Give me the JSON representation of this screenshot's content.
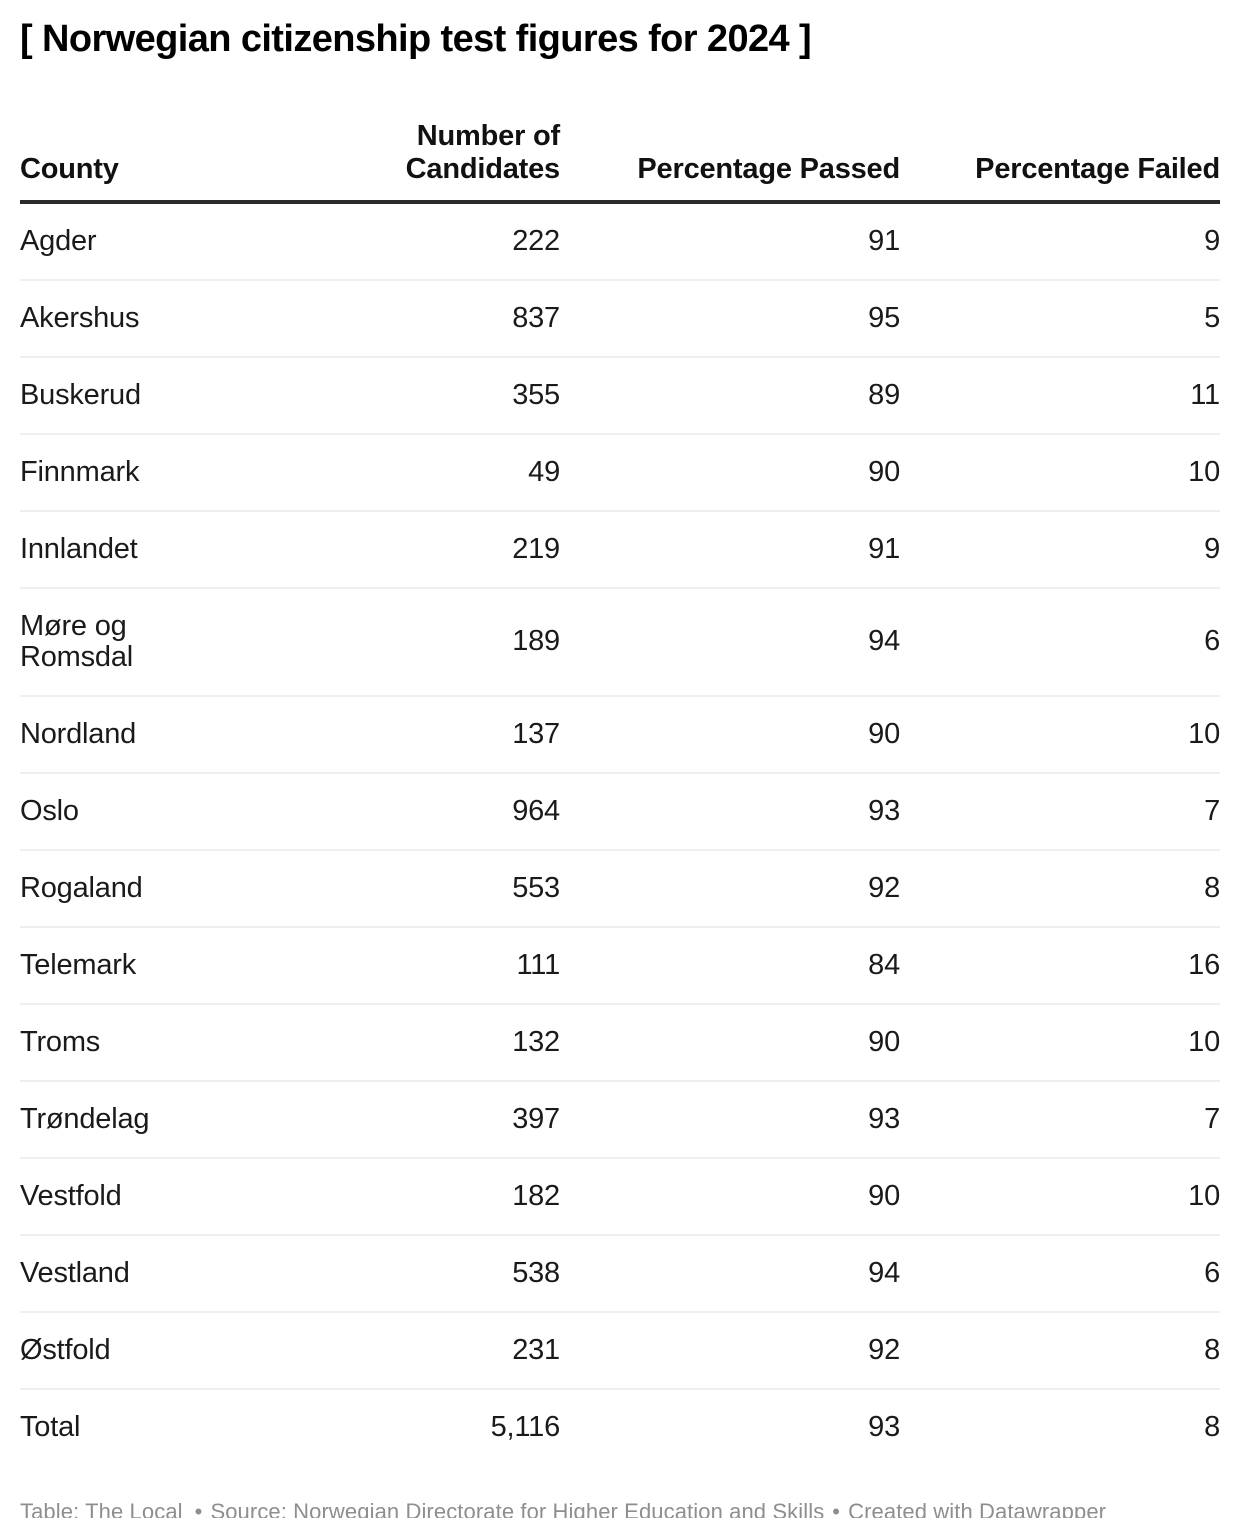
{
  "chart_data": {
    "type": "table",
    "title": "[ Norwegian citizenship test figures for 2024 ]",
    "columns": [
      "County",
      "Number of Candidates",
      "Percentage Passed",
      "Percentage Failed"
    ],
    "rows": [
      [
        "Agder",
        222,
        91,
        9
      ],
      [
        "Akershus",
        837,
        95,
        5
      ],
      [
        "Buskerud",
        355,
        89,
        11
      ],
      [
        "Finnmark",
        49,
        90,
        10
      ],
      [
        "Innlandet",
        219,
        91,
        9
      ],
      [
        "Møre og Romsdal",
        189,
        94,
        6
      ],
      [
        "Nordland",
        137,
        90,
        10
      ],
      [
        "Oslo",
        964,
        93,
        7
      ],
      [
        "Rogaland",
        553,
        92,
        8
      ],
      [
        "Telemark",
        111,
        84,
        16
      ],
      [
        "Troms",
        132,
        90,
        10
      ],
      [
        "Trøndelag",
        397,
        93,
        7
      ],
      [
        "Vestfold",
        182,
        90,
        10
      ],
      [
        "Vestland",
        538,
        94,
        6
      ],
      [
        "Østfold",
        231,
        92,
        8
      ],
      [
        "Total",
        5116,
        93,
        8
      ]
    ],
    "layout_hints": {
      "numeric_columns_right_aligned": true,
      "header_rule": "thick dark line under header",
      "row_dividers": "light gray",
      "total_row_emphasis": "none"
    }
  },
  "footer": {
    "byline": "Table: The Local",
    "sep": "•",
    "source": "Source: Norwegian Directorate for Higher Education and Skills",
    "created": "Created with Datawrapper"
  }
}
